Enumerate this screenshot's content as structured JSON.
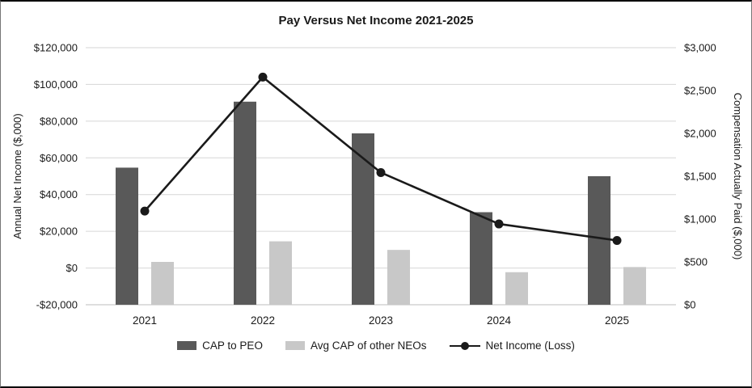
{
  "chart_data": {
    "type": "combo-bar-line",
    "title": "Pay Versus Net Income 2021-2025",
    "categories": [
      "2021",
      "2022",
      "2023",
      "2024",
      "2025"
    ],
    "bar_series": [
      {
        "name": "CAP to PEO",
        "axis": "right",
        "color": "#595959",
        "values": [
          1600,
          2370,
          2000,
          1080,
          1500
        ]
      },
      {
        "name": "Avg CAP of other NEOs",
        "axis": "right",
        "color": "#c8c8c8",
        "values": [
          500,
          740,
          640,
          380,
          440
        ]
      }
    ],
    "line_series": [
      {
        "name": "Net Income (Loss)",
        "axis": "left",
        "color": "#1a1a1a",
        "values": [
          31000,
          104000,
          52000,
          24000,
          15000
        ]
      }
    ],
    "left_axis": {
      "label": "Annual Net Income ($,000)",
      "min": -20000,
      "max": 120000,
      "step": 20000,
      "tick_labels": [
        "-$20,000",
        "$0",
        "$20,000",
        "$40,000",
        "$60,000",
        "$80,000",
        "$100,000",
        "$120,000"
      ]
    },
    "right_axis": {
      "label": "Compensation Actually Paid ($,000)",
      "min": 0,
      "max": 3000,
      "step": 500,
      "tick_labels": [
        "$0",
        "$500",
        "$1,000",
        "$1,500",
        "$2,000",
        "$2,500",
        "$3,000"
      ]
    },
    "grid": true,
    "legend_position": "bottom",
    "colors": {
      "gridline": "#d6d6d6",
      "text": "#1a1a1a",
      "background": "#ffffff"
    }
  }
}
